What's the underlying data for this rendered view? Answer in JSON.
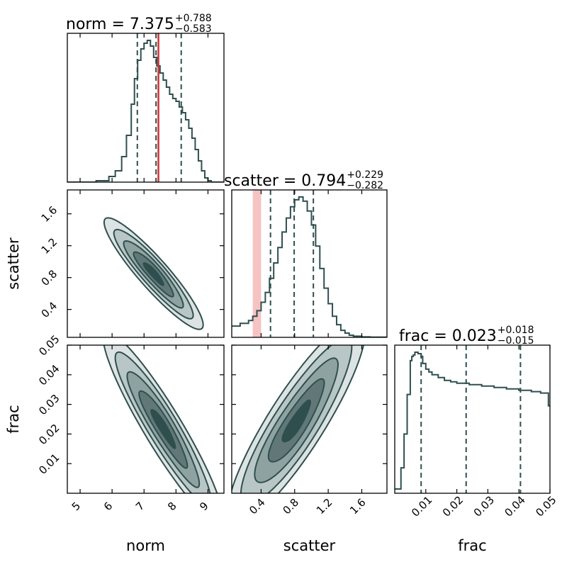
{
  "chart_data": {
    "type": "corner",
    "parameters": [
      "norm",
      "scatter",
      "frac"
    ],
    "colors": {
      "main": "#2f4f4f",
      "truth_line": "#cc3333",
      "truth_band": "#f4b9b9",
      "contour_fills": [
        "#dde3e3",
        "#b9c6c6",
        "#8fa2a2",
        "#627878",
        "#2f4f4f"
      ]
    },
    "norm": {
      "label": "norm",
      "title": {
        "prefix": "norm = ",
        "value": "7.375",
        "plus": "+0.788",
        "minus": "−0.583"
      },
      "range": [
        4.6,
        9.5
      ],
      "ticks": [
        5,
        6,
        7,
        8,
        9
      ],
      "tick_labels": [
        "5",
        "6",
        "7",
        "8",
        "9"
      ],
      "quantiles": [
        6.79,
        7.375,
        8.163
      ],
      "truth": 7.45,
      "hist": {
        "x": [
          4.6,
          5.5,
          5.9,
          6.1,
          6.3,
          6.45,
          6.6,
          6.7,
          6.8,
          6.9,
          7.0,
          7.1,
          7.2,
          7.3,
          7.4,
          7.5,
          7.6,
          7.7,
          7.8,
          7.9,
          8.0,
          8.1,
          8.2,
          8.3,
          8.4,
          8.5,
          8.6,
          8.7,
          8.8,
          8.9,
          9.0,
          9.1,
          9.5
        ],
        "y": [
          0,
          0.01,
          0.04,
          0.08,
          0.18,
          0.33,
          0.55,
          0.73,
          0.86,
          0.94,
          0.98,
          1.0,
          0.96,
          0.88,
          0.82,
          0.77,
          0.72,
          0.67,
          0.62,
          0.59,
          0.57,
          0.53,
          0.49,
          0.44,
          0.38,
          0.31,
          0.23,
          0.15,
          0.08,
          0.03,
          0.01,
          0,
          0
        ]
      }
    },
    "scatter": {
      "label": "scatter",
      "title": {
        "prefix": "scatter = ",
        "value": "0.794",
        "plus": "+0.229",
        "minus": "−0.282"
      },
      "range": [
        0.05,
        1.9
      ],
      "ticks": [
        0.4,
        0.8,
        1.2,
        1.6
      ],
      "tick_labels": [
        "0.4",
        "0.8",
        "1.2",
        "1.6"
      ],
      "quantiles": [
        0.512,
        0.794,
        1.023
      ],
      "truth_band": [
        0.3,
        0.4
      ],
      "hist": {
        "x": [
          0.05,
          0.15,
          0.25,
          0.3,
          0.35,
          0.4,
          0.45,
          0.5,
          0.55,
          0.6,
          0.65,
          0.7,
          0.75,
          0.8,
          0.85,
          0.9,
          0.95,
          1.0,
          1.05,
          1.1,
          1.15,
          1.2,
          1.25,
          1.3,
          1.35,
          1.4,
          1.45,
          1.5,
          1.6,
          1.7,
          1.9
        ],
        "y": [
          0.08,
          0.1,
          0.12,
          0.15,
          0.19,
          0.25,
          0.32,
          0.42,
          0.53,
          0.64,
          0.75,
          0.85,
          0.93,
          0.98,
          1.0,
          0.97,
          0.9,
          0.8,
          0.65,
          0.49,
          0.35,
          0.24,
          0.15,
          0.09,
          0.05,
          0.03,
          0.015,
          0.008,
          0.003,
          0.001,
          0
        ]
      }
    },
    "frac": {
      "label": "frac",
      "title": {
        "prefix": "frac = ",
        "value": "0.023",
        "plus": "+0.018",
        "minus": "−0.015"
      },
      "range": [
        0.0,
        0.05
      ],
      "ticks": [
        0.01,
        0.02,
        0.03,
        0.04,
        0.05
      ],
      "tick_labels": [
        "0.01",
        "0.02",
        "0.03",
        "0.04",
        "0.05"
      ],
      "quantiles": [
        0.0085,
        0.023,
        0.0405
      ],
      "hist": {
        "x": [
          0.0,
          0.001,
          0.002,
          0.003,
          0.004,
          0.005,
          0.0055,
          0.006,
          0.0065,
          0.007,
          0.0075,
          0.008,
          0.0085,
          0.009,
          0.01,
          0.011,
          0.012,
          0.014,
          0.016,
          0.018,
          0.02,
          0.024,
          0.028,
          0.032,
          0.036,
          0.04,
          0.044,
          0.047,
          0.049,
          0.0495,
          0.05
        ],
        "y": [
          0.03,
          0.03,
          0.18,
          0.42,
          0.7,
          0.94,
          0.97,
          0.98,
          1.0,
          1.0,
          0.99,
          0.99,
          0.97,
          0.92,
          0.88,
          0.86,
          0.84,
          0.82,
          0.8,
          0.79,
          0.78,
          0.77,
          0.76,
          0.75,
          0.74,
          0.73,
          0.72,
          0.71,
          0.71,
          0.62,
          0.62
        ]
      }
    },
    "pairs": [
      {
        "x": "norm",
        "y": "scatter",
        "center": [
          7.3,
          0.85
        ],
        "sigma": [
          0.62,
          0.28
        ],
        "corr": -0.92,
        "levels": [
          2.5,
          2.0,
          1.5,
          1.0,
          0.5
        ]
      },
      {
        "x": "norm",
        "y": "frac",
        "center": [
          7.6,
          0.022
        ],
        "sigma": [
          0.75,
          0.013
        ],
        "corr": -0.93,
        "levels": [
          2.5,
          2.0,
          1.5,
          1.0,
          0.5
        ]
      },
      {
        "x": "scatter",
        "y": "frac",
        "center": [
          0.82,
          0.024
        ],
        "sigma": [
          0.33,
          0.014
        ],
        "corr": 0.88,
        "levels": [
          2.5,
          2.0,
          1.5,
          1.0,
          0.5
        ]
      }
    ]
  }
}
